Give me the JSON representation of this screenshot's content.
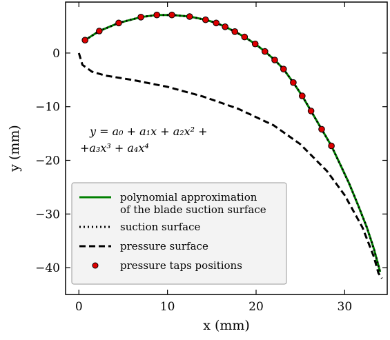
{
  "chart_data": {
    "type": "line",
    "xlabel": "x (mm)",
    "ylabel": "y (mm)",
    "xlim": [
      -1.5,
      34.8
    ],
    "ylim": [
      -45,
      9.5
    ],
    "xticks": [
      0,
      10,
      20,
      30
    ],
    "yticks": [
      0,
      -10,
      -20,
      -30,
      -40
    ],
    "xtick_labels": [
      "0",
      "10",
      "20",
      "30"
    ],
    "ytick_labels": [
      "0",
      "−10",
      "−20",
      "−30",
      "−40"
    ],
    "grid": false,
    "legend_placement": "lower-left",
    "annotation": {
      "line1": "y = a₀ + a₁x + a₂x² +",
      "line2": "+a₃x³ + a₄x⁴"
    },
    "legend": [
      {
        "key": "poly",
        "label_lines": [
          "polynomial approximation",
          "of the blade suction surface"
        ]
      },
      {
        "key": "suction",
        "label_lines": [
          "suction surface"
        ]
      },
      {
        "key": "pressure",
        "label_lines": [
          "pressure surface"
        ]
      },
      {
        "key": "taps",
        "label_lines": [
          "pressure taps positions"
        ]
      }
    ],
    "series": [
      {
        "key": "poly",
        "name": "polynomial approximation of the blade suction surface",
        "color": "#008000",
        "style": "solid",
        "points": [
          [
            0.7,
            2.4
          ],
          [
            2.3,
            4.1
          ],
          [
            4.5,
            5.6
          ],
          [
            7.0,
            6.7
          ],
          [
            8.8,
            7.1
          ],
          [
            10.5,
            7.1
          ],
          [
            12.5,
            6.8
          ],
          [
            14.3,
            6.2
          ],
          [
            15.5,
            5.6
          ],
          [
            16.5,
            4.9
          ],
          [
            17.6,
            4.0
          ],
          [
            18.7,
            3.0
          ],
          [
            19.9,
            1.7
          ],
          [
            21.0,
            0.3
          ],
          [
            22.1,
            -1.3
          ],
          [
            23.1,
            -3.0
          ],
          [
            24.2,
            -5.5
          ],
          [
            25.2,
            -8.0
          ],
          [
            26.2,
            -10.8
          ],
          [
            27.4,
            -14.2
          ],
          [
            28.5,
            -17.3
          ],
          [
            29.5,
            -20.8
          ],
          [
            30.5,
            -24.3
          ],
          [
            31.5,
            -28.3
          ],
          [
            32.5,
            -32.5
          ],
          [
            33.3,
            -36.5
          ],
          [
            34.0,
            -40.8
          ]
        ]
      },
      {
        "key": "suction",
        "name": "suction surface",
        "color": "#000000",
        "style": "dotted",
        "points": [
          [
            0.7,
            2.4
          ],
          [
            2.3,
            4.1
          ],
          [
            4.5,
            5.6
          ],
          [
            7.0,
            6.7
          ],
          [
            8.8,
            7.1
          ],
          [
            10.5,
            7.1
          ],
          [
            12.5,
            6.8
          ],
          [
            14.3,
            6.2
          ],
          [
            15.5,
            5.6
          ],
          [
            16.5,
            4.9
          ],
          [
            17.6,
            4.0
          ],
          [
            18.7,
            3.0
          ],
          [
            19.9,
            1.7
          ],
          [
            21.0,
            0.3
          ],
          [
            22.1,
            -1.3
          ],
          [
            23.1,
            -3.0
          ],
          [
            24.2,
            -5.5
          ],
          [
            25.2,
            -8.0
          ],
          [
            26.2,
            -10.8
          ],
          [
            27.4,
            -14.2
          ],
          [
            28.5,
            -17.3
          ],
          [
            29.5,
            -20.8
          ],
          [
            30.5,
            -24.3
          ],
          [
            31.5,
            -28.3
          ],
          [
            32.5,
            -32.5
          ],
          [
            33.3,
            -36.5
          ],
          [
            34.0,
            -40.8
          ]
        ]
      },
      {
        "key": "pressure",
        "name": "pressure surface",
        "color": "#000000",
        "style": "dashed",
        "points": [
          [
            0.0,
            0.0
          ],
          [
            0.4,
            -2.2
          ],
          [
            1.5,
            -3.5
          ],
          [
            3.0,
            -4.2
          ],
          [
            6.0,
            -5.0
          ],
          [
            10.0,
            -6.3
          ],
          [
            14.0,
            -8.1
          ],
          [
            18.0,
            -10.4
          ],
          [
            22.0,
            -13.5
          ],
          [
            25.0,
            -17.0
          ],
          [
            28.0,
            -22.0
          ],
          [
            30.0,
            -26.5
          ],
          [
            32.0,
            -32.5
          ],
          [
            33.3,
            -38.0
          ],
          [
            33.8,
            -41.0
          ],
          [
            34.2,
            -42.0
          ]
        ]
      }
    ],
    "pressure_taps": {
      "name": "pressure taps positions",
      "color": "#dd0000",
      "points": [
        [
          0.7,
          2.4
        ],
        [
          2.3,
          4.1
        ],
        [
          4.5,
          5.6
        ],
        [
          7.0,
          6.7
        ],
        [
          8.8,
          7.1
        ],
        [
          10.5,
          7.1
        ],
        [
          12.5,
          6.8
        ],
        [
          14.3,
          6.2
        ],
        [
          15.5,
          5.6
        ],
        [
          16.5,
          4.9
        ],
        [
          17.6,
          4.0
        ],
        [
          18.7,
          3.0
        ],
        [
          19.9,
          1.7
        ],
        [
          21.0,
          0.3
        ],
        [
          22.1,
          -1.3
        ],
        [
          23.1,
          -3.0
        ],
        [
          24.2,
          -5.5
        ],
        [
          25.2,
          -8.0
        ],
        [
          26.2,
          -10.8
        ],
        [
          27.4,
          -14.2
        ],
        [
          28.5,
          -17.3
        ]
      ]
    }
  }
}
